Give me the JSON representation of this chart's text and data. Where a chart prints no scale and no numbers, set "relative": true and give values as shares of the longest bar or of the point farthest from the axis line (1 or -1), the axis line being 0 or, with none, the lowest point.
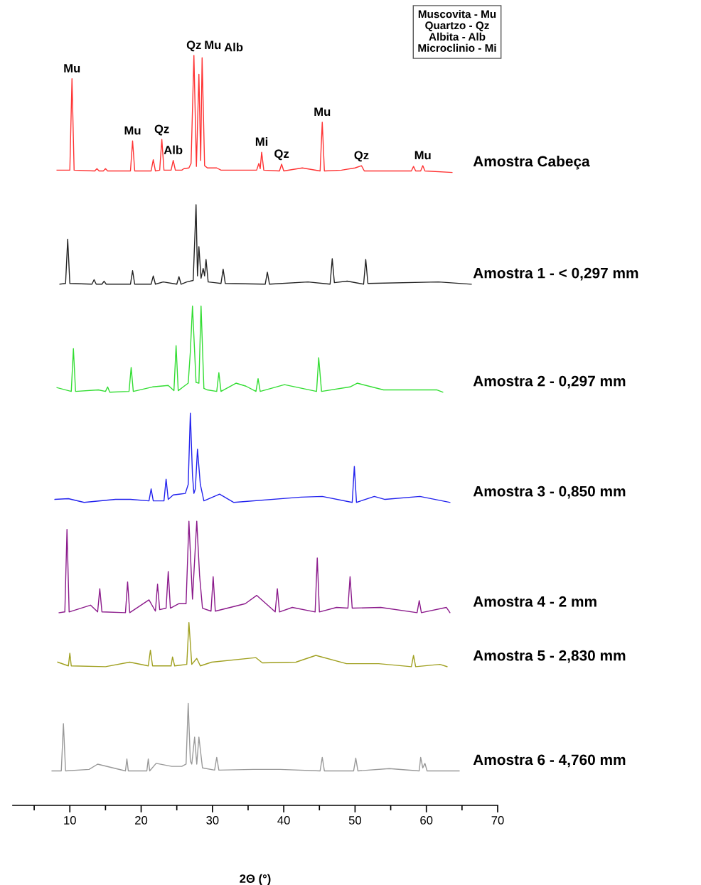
{
  "chart_data": {
    "type": "line",
    "relative": true,
    "tick_labels": "x",
    "xlim": [
      2,
      70
    ],
    "xlabel": "2Θ (°)",
    "xticks": [
      {
        "value": 5,
        "label": null
      },
      10,
      {
        "value": 15,
        "label": null
      },
      20,
      {
        "value": 25,
        "label": null
      },
      30,
      {
        "value": 35,
        "label": null
      },
      40,
      {
        "value": 45,
        "label": null
      },
      50,
      {
        "value": 55,
        "label": null
      },
      60,
      {
        "value": 65,
        "label": null
      },
      70
    ],
    "series": [
      {
        "name": "Amostra Cabeça",
        "color": "#ff3333",
        "x": [
          8.2,
          10.0,
          10.3,
          10.6,
          13.5,
          13.8,
          14.1,
          14.7,
          15.0,
          15.3,
          18.5,
          18.8,
          19.1,
          21.4,
          21.7,
          22.0,
          22.6,
          22.9,
          23.2,
          24.2,
          24.5,
          24.8,
          25.7,
          26.0,
          26.7,
          27.0,
          27.4,
          27.75,
          28.1,
          28.35,
          28.55,
          28.9,
          29.3,
          30.6,
          31.2,
          36.2,
          36.5,
          36.7,
          36.9,
          37.2,
          39.4,
          39.7,
          40.0,
          42.6,
          45.1,
          45.4,
          45.7,
          48.1,
          50.0,
          50.9,
          51.3,
          57.9,
          58.2,
          58.5,
          59.2,
          59.5,
          59.8,
          63.6
        ],
        "values": [
          0.847,
          0.847,
          0.969,
          0.847,
          0.846,
          0.849,
          0.846,
          0.846,
          0.849,
          0.846,
          0.846,
          0.886,
          0.846,
          0.846,
          0.861,
          0.846,
          0.847,
          0.888,
          0.847,
          0.847,
          0.86,
          0.847,
          0.847,
          0.849,
          0.85,
          0.856,
          1.0,
          0.852,
          0.975,
          0.86,
          0.997,
          0.853,
          0.85,
          0.85,
          0.847,
          0.847,
          0.856,
          0.849,
          0.871,
          0.847,
          0.846,
          0.855,
          0.846,
          0.85,
          0.846,
          0.911,
          0.846,
          0.847,
          0.85,
          0.853,
          0.846,
          0.846,
          0.852,
          0.846,
          0.846,
          0.853,
          0.846,
          0.844
        ]
      },
      {
        "name": "Amostra 1 - < 0,297 mm",
        "color": "#222222",
        "x": [
          8.6,
          9.4,
          9.7,
          10.0,
          13.1,
          13.4,
          13.7,
          14.5,
          14.8,
          15.1,
          18.5,
          18.8,
          19.1,
          21.4,
          21.7,
          22.0,
          23.1,
          25.0,
          25.3,
          25.6,
          26.4,
          27.3,
          27.7,
          27.9,
          28.1,
          28.4,
          28.7,
          28.9,
          29.1,
          29.4,
          30.3,
          31.2,
          31.5,
          31.8,
          37.4,
          37.7,
          38.0,
          43.4,
          46.5,
          46.8,
          47.1,
          48.9,
          51.2,
          51.5,
          51.8,
          61.7,
          66.3
        ],
        "values": [
          0.695,
          0.696,
          0.755,
          0.696,
          0.695,
          0.701,
          0.695,
          0.695,
          0.699,
          0.695,
          0.695,
          0.713,
          0.695,
          0.695,
          0.706,
          0.695,
          0.698,
          0.695,
          0.705,
          0.695,
          0.698,
          0.7,
          0.801,
          0.706,
          0.745,
          0.703,
          0.716,
          0.706,
          0.728,
          0.698,
          0.697,
          0.696,
          0.715,
          0.696,
          0.695,
          0.711,
          0.695,
          0.698,
          0.695,
          0.729,
          0.697,
          0.699,
          0.695,
          0.728,
          0.696,
          0.698,
          0.695
        ]
      },
      {
        "name": "Amostra 2 - 0,297 mm",
        "color": "#33dd33",
        "x": [
          8.2,
          10.2,
          10.5,
          10.8,
          14.0,
          15.0,
          15.3,
          15.6,
          18.3,
          18.6,
          18.9,
          21.6,
          23.8,
          24.6,
          24.9,
          25.2,
          25.9,
          26.6,
          26.9,
          27.2,
          27.7,
          28.1,
          28.4,
          28.8,
          29.3,
          30.6,
          30.9,
          31.2,
          33.3,
          34.7,
          36.1,
          36.4,
          36.7,
          40.1,
          44.6,
          44.9,
          45.3,
          49.3,
          50.3,
          54.0,
          61.5,
          62.3
        ],
        "values": [
          0.557,
          0.552,
          0.609,
          0.552,
          0.554,
          0.552,
          0.558,
          0.551,
          0.552,
          0.584,
          0.552,
          0.558,
          0.56,
          0.553,
          0.613,
          0.553,
          0.558,
          0.563,
          0.605,
          0.666,
          0.564,
          0.563,
          0.666,
          0.556,
          0.554,
          0.552,
          0.577,
          0.552,
          0.563,
          0.559,
          0.552,
          0.569,
          0.552,
          0.561,
          0.552,
          0.597,
          0.552,
          0.558,
          0.563,
          0.554,
          0.554,
          0.551
        ]
      },
      {
        "name": "Amostra 3 - 0,850 mm",
        "color": "#2222ee",
        "x": [
          7.9,
          9.8,
          12.0,
          16.4,
          18.5,
          21.1,
          21.4,
          21.7,
          23.2,
          23.5,
          23.8,
          24.5,
          26.2,
          26.6,
          26.9,
          27.2,
          27.4,
          27.6,
          27.9,
          28.3,
          28.8,
          31.0,
          33.0,
          42.4,
          45.4,
          49.6,
          49.9,
          50.2,
          52.7,
          54.2,
          59.1,
          63.3
        ],
        "values": [
          0.408,
          0.409,
          0.404,
          0.408,
          0.408,
          0.406,
          0.422,
          0.406,
          0.406,
          0.435,
          0.408,
          0.414,
          0.416,
          0.428,
          0.523,
          0.44,
          0.416,
          0.422,
          0.475,
          0.428,
          0.406,
          0.415,
          0.404,
          0.411,
          0.412,
          0.404,
          0.452,
          0.404,
          0.412,
          0.408,
          0.412,
          0.404
        ]
      },
      {
        "name": "Amostra 4 - 2 mm",
        "color": "#8b1a8b",
        "x": [
          8.5,
          9.3,
          9.6,
          9.9,
          12.9,
          13.9,
          14.2,
          14.5,
          17.8,
          18.1,
          18.4,
          21.1,
          22.0,
          22.3,
          22.6,
          23.5,
          23.8,
          24.1,
          25.3,
          26.3,
          26.7,
          27.2,
          27.8,
          28.2,
          28.6,
          29.8,
          30.1,
          30.4,
          34.6,
          36.2,
          38.8,
          39.1,
          39.4,
          41.2,
          44.4,
          44.7,
          45.0,
          47.4,
          49.0,
          49.3,
          49.6,
          53.6,
          58.7,
          59.0,
          59.3,
          62.8,
          63.3
        ],
        "values": [
          0.257,
          0.258,
          0.368,
          0.258,
          0.267,
          0.258,
          0.289,
          0.258,
          0.257,
          0.298,
          0.257,
          0.274,
          0.259,
          0.295,
          0.261,
          0.263,
          0.312,
          0.263,
          0.269,
          0.269,
          0.379,
          0.275,
          0.379,
          0.306,
          0.263,
          0.259,
          0.305,
          0.259,
          0.269,
          0.28,
          0.258,
          0.289,
          0.258,
          0.264,
          0.258,
          0.33,
          0.258,
          0.264,
          0.263,
          0.305,
          0.263,
          0.264,
          0.257,
          0.273,
          0.257,
          0.264,
          0.257
        ]
      },
      {
        "name": "Amostra 5 - 2,830 mm",
        "color": "#a0a020",
        "x": [
          8.3,
          9.8,
          10.0,
          10.2,
          15.0,
          18.4,
          21.0,
          21.3,
          21.6,
          24.2,
          24.4,
          24.7,
          26.4,
          26.7,
          27.1,
          27.8,
          28.3,
          29.9,
          36.1,
          37.0,
          41.7,
          44.5,
          48.8,
          53.3,
          57.9,
          58.2,
          58.5,
          61.9,
          62.9
        ],
        "values": [
          0.191,
          0.186,
          0.203,
          0.186,
          0.185,
          0.191,
          0.186,
          0.207,
          0.186,
          0.186,
          0.198,
          0.186,
          0.188,
          0.244,
          0.188,
          0.196,
          0.186,
          0.191,
          0.197,
          0.19,
          0.191,
          0.2,
          0.189,
          0.189,
          0.185,
          0.2,
          0.185,
          0.188,
          0.185
        ]
      },
      {
        "name": "Amostra 6 - 4,760 mm",
        "color": "#999999",
        "x": [
          7.5,
          8.8,
          9.1,
          9.4,
          12.7,
          13.9,
          17.8,
          18.0,
          18.2,
          20.8,
          21.0,
          21.2,
          22.1,
          24.3,
          25.7,
          26.3,
          26.6,
          26.9,
          27.1,
          27.5,
          27.8,
          28.1,
          28.6,
          30.3,
          30.6,
          30.9,
          35.7,
          39.5,
          45.1,
          45.4,
          45.7,
          49.8,
          50.1,
          50.4,
          54.8,
          59.0,
          59.2,
          59.5,
          59.8,
          60.1,
          64.6
        ],
        "values": [
          0.046,
          0.046,
          0.109,
          0.046,
          0.048,
          0.055,
          0.046,
          0.062,
          0.046,
          0.046,
          0.062,
          0.046,
          0.056,
          0.052,
          0.052,
          0.055,
          0.136,
          0.059,
          0.055,
          0.091,
          0.055,
          0.091,
          0.05,
          0.047,
          0.064,
          0.047,
          0.048,
          0.048,
          0.046,
          0.064,
          0.046,
          0.046,
          0.063,
          0.046,
          0.049,
          0.046,
          0.064,
          0.05,
          0.056,
          0.046,
          0.046
        ]
      }
    ],
    "annotations": [
      {
        "text": "Mu",
        "x": 10.3,
        "y": 0.969
      },
      {
        "text": "Mu",
        "x": 18.8,
        "y": 0.886
      },
      {
        "text": "Qz",
        "x": 22.9,
        "y": 0.888
      },
      {
        "text": "Alb",
        "x": 24.5,
        "y": 0.86
      },
      {
        "text": "Qz",
        "x": 27.4,
        "y": 1.0
      },
      {
        "text": "Mu",
        "x": 28.1,
        "y": 0.975
      },
      {
        "text": "Alb",
        "x": 28.55,
        "y": 0.997
      },
      {
        "text": "Mi",
        "x": 36.9,
        "y": 0.871
      },
      {
        "text": "Qz",
        "x": 39.7,
        "y": 0.855
      },
      {
        "text": "Mu",
        "x": 45.4,
        "y": 0.911
      },
      {
        "text": "Qz",
        "x": 50.9,
        "y": 0.853
      },
      {
        "text": "Mu",
        "x": 59.5,
        "y": 0.853
      },
      "Muscovita - Mu",
      "Quartzo - Qz",
      "Albita - Alb",
      "Microclinio - Mi"
    ]
  }
}
